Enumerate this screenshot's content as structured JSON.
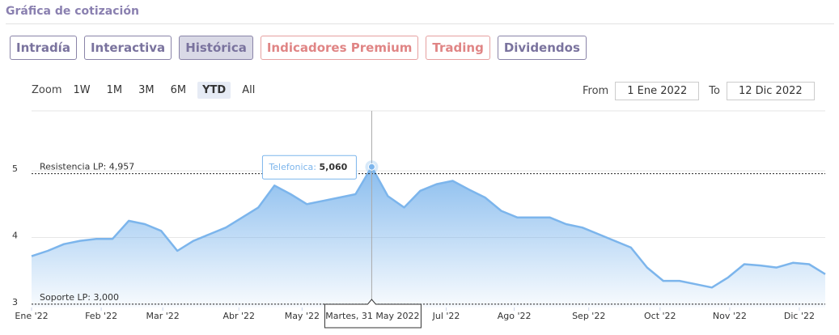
{
  "header": {
    "title": "Gráfica de cotización"
  },
  "tabs": [
    "Intradía",
    "Interactiva",
    "Histórica",
    "Indicadores Premium",
    "Trading",
    "Dividendos"
  ],
  "zoom": {
    "label": "Zoom",
    "buttons": [
      "1W",
      "1M",
      "3M",
      "6M",
      "YTD",
      "All"
    ]
  },
  "range": {
    "from_label": "From",
    "from": "1 Ene 2022",
    "to_label": "To",
    "to": "12 Dic 2022"
  },
  "chart_data": {
    "type": "line",
    "series": [
      {
        "name": "Telefonica",
        "color": "#7cb5ec",
        "values": [
          3.72,
          3.8,
          3.9,
          3.95,
          3.98,
          3.98,
          4.25,
          4.2,
          4.1,
          3.8,
          3.95,
          4.05,
          4.15,
          4.3,
          4.45,
          4.78,
          4.65,
          4.5,
          4.55,
          4.6,
          4.65,
          5.06,
          4.62,
          4.45,
          4.7,
          4.8,
          4.85,
          4.72,
          4.6,
          4.4,
          4.3,
          4.3,
          4.3,
          4.2,
          4.15,
          4.05,
          3.95,
          3.85,
          3.55,
          3.35,
          3.35,
          3.3,
          3.25,
          3.4,
          3.6,
          3.58,
          3.55,
          3.62,
          3.6,
          3.45
        ]
      }
    ],
    "xlim": [
      0,
      49
    ],
    "xticks": [
      {
        "value": 0,
        "label": "Ene '22"
      },
      {
        "value": 4.3,
        "label": "Feb '22"
      },
      {
        "value": 8.1,
        "label": "Mar '22"
      },
      {
        "value": 12.8,
        "label": "Abr '22"
      },
      {
        "value": 16.7,
        "label": "May '22"
      },
      {
        "value": 25.6,
        "label": "Jul '22"
      },
      {
        "value": 29.8,
        "label": "Ago '22"
      },
      {
        "value": 34.4,
        "label": "Sep '22"
      },
      {
        "value": 38.8,
        "label": "Oct '22"
      },
      {
        "value": 43.1,
        "label": "Nov '22"
      },
      {
        "value": 47.4,
        "label": "Dic '22"
      }
    ],
    "ylim": [
      2.95,
      5.9
    ],
    "yticks": [
      3,
      4,
      5
    ],
    "grid": true,
    "plot_lines": [
      {
        "value": 4.957,
        "label": "Resistencia LP: 4,957"
      },
      {
        "value": 3,
        "label": "Soporte LP: 3,000"
      }
    ],
    "tooltip": {
      "series_label": "Telefonica",
      "value_label": "5,060",
      "date_label": "Martes, 31 May 2022"
    }
  }
}
